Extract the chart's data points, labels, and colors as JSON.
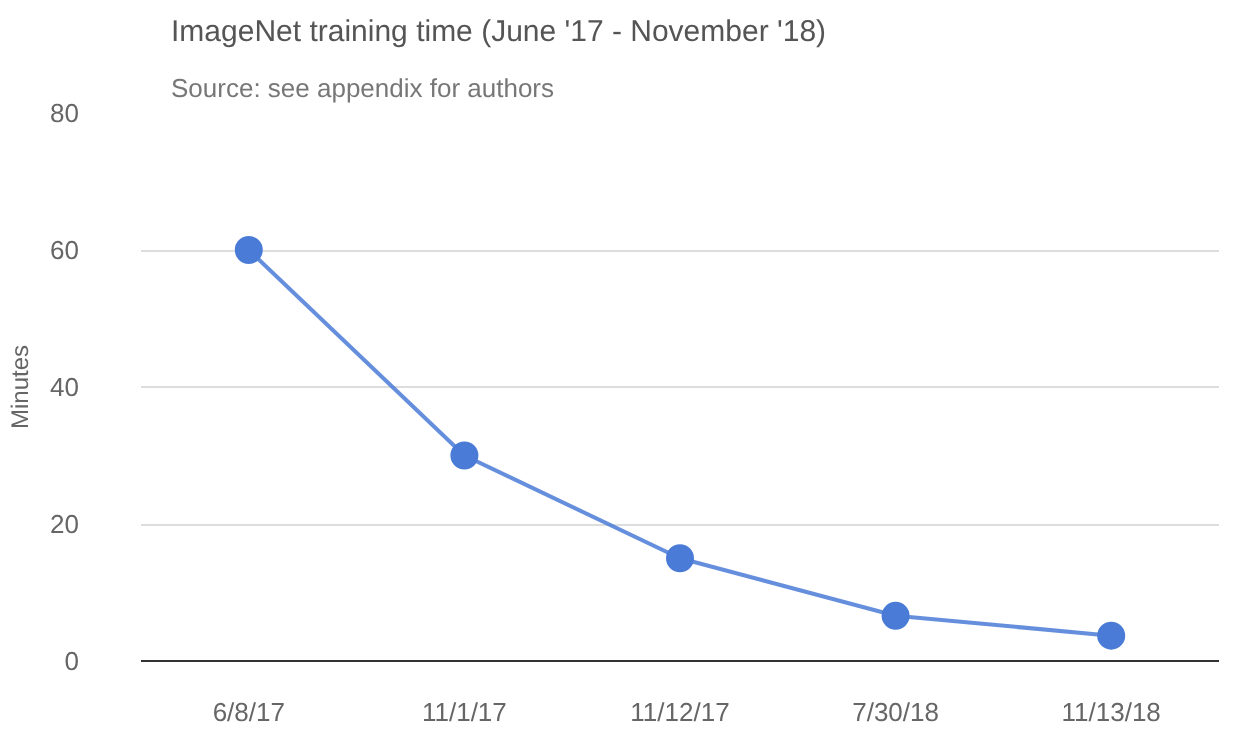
{
  "chart_data": {
    "type": "line",
    "title": "ImageNet training time (June '17 - November '18)",
    "subtitle": "Source: see appendix for authors",
    "ylabel": "Minutes",
    "categories": [
      "6/8/17",
      "11/1/17",
      "11/12/17",
      "7/30/18",
      "11/13/18"
    ],
    "series": [
      {
        "color": "#4a7bd6",
        "values": [
          60,
          30,
          15,
          6.6,
          3.7
        ]
      }
    ],
    "ylim": [
      0,
      80
    ],
    "yticks": [
      0,
      20,
      40,
      60,
      80
    ],
    "grid": "y",
    "marker": "circle",
    "line_style": "solid"
  }
}
